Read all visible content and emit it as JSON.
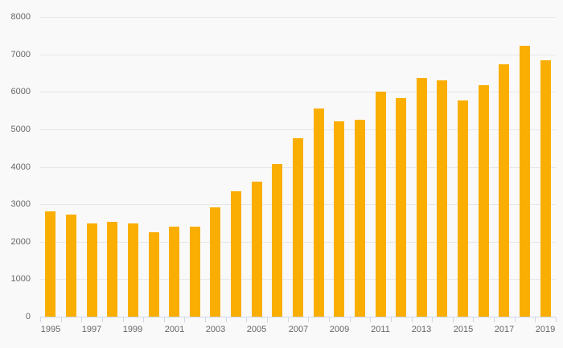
{
  "chart_data": {
    "type": "bar",
    "title": "",
    "xlabel": "",
    "ylabel": "",
    "categories": [
      "1995",
      "1996",
      "1997",
      "1998",
      "1999",
      "2000",
      "2001",
      "2002",
      "2003",
      "2004",
      "2005",
      "2006",
      "2007",
      "2008",
      "2009",
      "2010",
      "2011",
      "2012",
      "2013",
      "2014",
      "2015",
      "2016",
      "2017",
      "2018",
      "2019"
    ],
    "values": [
      2810,
      2720,
      2480,
      2540,
      2480,
      2250,
      2410,
      2410,
      2910,
      3350,
      3600,
      4080,
      4770,
      5560,
      5220,
      5260,
      6010,
      5840,
      6370,
      6310,
      5770,
      6170,
      6730,
      7230,
      6840
    ],
    "ylim": [
      0,
      8000
    ],
    "y_ticks": [
      0,
      1000,
      2000,
      3000,
      4000,
      5000,
      6000,
      7000,
      8000
    ],
    "x_tick_labels": [
      "1995",
      "1997",
      "1999",
      "2001",
      "2003",
      "2005",
      "2007",
      "2009",
      "2011",
      "2013",
      "2015",
      "2017",
      "2019"
    ],
    "grid": "horizontal-only",
    "legend": "none",
    "colors": {
      "bar": "#FAAE01",
      "background": "#f9f9f9",
      "gridline": "#e7e7e7",
      "axis_line": "#ccd6eb",
      "label_text": "#666666"
    }
  }
}
